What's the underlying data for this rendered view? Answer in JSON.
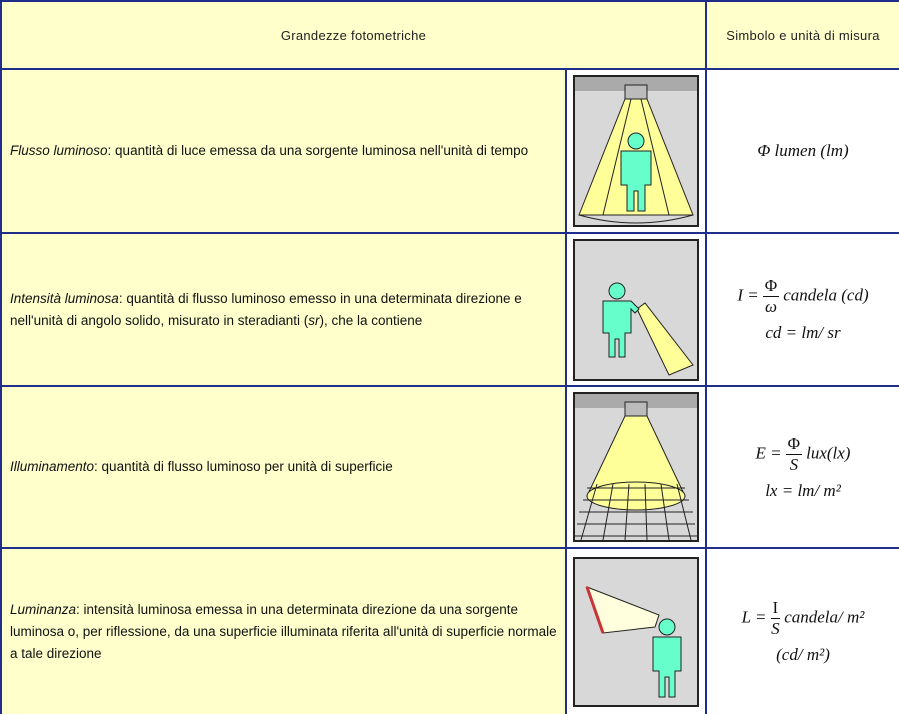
{
  "header": {
    "quantities": "Grandezze fotometriche",
    "symbol_unit": "Simbolo e unità di misura"
  },
  "rows": [
    {
      "term": "Flusso luminoso",
      "description": ": quantità di luce emessa da una sorgente luminosa nell'unità di tempo",
      "formula": {
        "symbol": "Φ",
        "unit": "lumen (lm)"
      }
    },
    {
      "term": "Intensità luminosa",
      "description": ": quantità di flusso luminoso emesso in una determinata direzione e nell'unità di angolo solido, misurato in steradianti (",
      "description_term": "sr",
      "description_end": "), che la contiene",
      "formula": {
        "lhs": "I =",
        "numerator": "Φ",
        "denominator": "ω",
        "unit": "candela (cd)",
        "line2": "cd = lm/ sr"
      }
    },
    {
      "term": "Illuminamento",
      "description": ": quantità di flusso luminoso per unità di superficie",
      "formula": {
        "lhs": "E =",
        "numerator": "Φ",
        "denominator": "S",
        "unit": "lux(lx)",
        "line2": "lx = lm/ m²"
      }
    },
    {
      "term": "Luminanza",
      "description": ": intensità luminosa emessa in una determinata direzione da una sorgente luminosa o, per riflessione, da una superficie illuminata riferita all'unità di superficie normale a tale direzione",
      "formula": {
        "lhs": "L =",
        "numerator": "I",
        "denominator": "S",
        "unit": "candela/ m²",
        "line2": "(cd/ m²)"
      }
    }
  ]
}
